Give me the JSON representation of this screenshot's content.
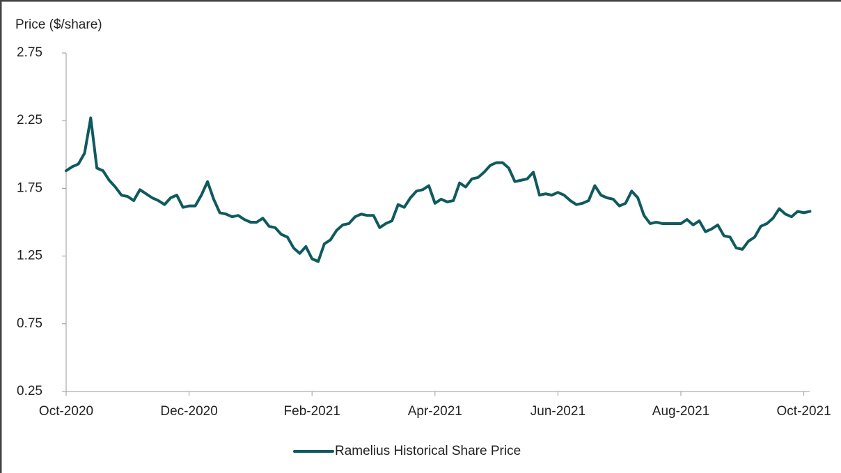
{
  "chart_data": {
    "type": "line",
    "y_label": "Price ($/share)",
    "categories": [
      "Oct-2020",
      null,
      null,
      null,
      null,
      null,
      null,
      null,
      null,
      null,
      null,
      null,
      null,
      null,
      null,
      null,
      null,
      null,
      null,
      null,
      "Dec-2020",
      null,
      null,
      null,
      null,
      null,
      null,
      null,
      null,
      null,
      null,
      null,
      null,
      null,
      null,
      null,
      null,
      null,
      null,
      null,
      "Feb-2021",
      null,
      null,
      null,
      null,
      null,
      null,
      null,
      null,
      null,
      null,
      null,
      null,
      null,
      null,
      null,
      null,
      null,
      null,
      null,
      "Apr-2021",
      null,
      null,
      null,
      null,
      null,
      null,
      null,
      null,
      null,
      null,
      null,
      null,
      null,
      null,
      null,
      null,
      null,
      null,
      null,
      "Jun-2021",
      null,
      null,
      null,
      null,
      null,
      null,
      null,
      null,
      null,
      null,
      null,
      null,
      null,
      null,
      null,
      null,
      null,
      null,
      null,
      "Aug-2021",
      null,
      null,
      null,
      null,
      null,
      null,
      null,
      null,
      null,
      null,
      null,
      null,
      null,
      null,
      null,
      null,
      null,
      null,
      null,
      "Oct-2021",
      null
    ],
    "series": [
      {
        "name": "Ramelius Historical Share Price",
        "color": "#0f5a5e",
        "values": [
          1.88,
          1.91,
          1.93,
          2.01,
          2.27,
          1.9,
          1.88,
          1.81,
          1.76,
          1.7,
          1.69,
          1.66,
          1.74,
          1.71,
          1.68,
          1.66,
          1.63,
          1.68,
          1.7,
          1.61,
          1.62,
          1.62,
          1.7,
          1.8,
          1.67,
          1.57,
          1.56,
          1.54,
          1.55,
          1.52,
          1.5,
          1.5,
          1.53,
          1.47,
          1.46,
          1.41,
          1.39,
          1.31,
          1.27,
          1.32,
          1.23,
          1.21,
          1.34,
          1.37,
          1.44,
          1.48,
          1.49,
          1.54,
          1.56,
          1.55,
          1.55,
          1.46,
          1.49,
          1.51,
          1.63,
          1.61,
          1.68,
          1.73,
          1.74,
          1.77,
          1.64,
          1.67,
          1.65,
          1.66,
          1.79,
          1.76,
          1.82,
          1.83,
          1.87,
          1.92,
          1.94,
          1.94,
          1.9,
          1.8,
          1.81,
          1.82,
          1.87,
          1.7,
          1.71,
          1.7,
          1.72,
          1.7,
          1.66,
          1.63,
          1.64,
          1.66,
          1.77,
          1.7,
          1.68,
          1.67,
          1.62,
          1.64,
          1.73,
          1.68,
          1.55,
          1.49,
          1.5,
          1.49,
          1.49,
          1.49,
          1.49,
          1.52,
          1.48,
          1.51,
          1.43,
          1.45,
          1.48,
          1.4,
          1.39,
          1.31,
          1.3,
          1.36,
          1.39,
          1.47,
          1.49,
          1.53,
          1.6,
          1.56,
          1.54,
          1.58,
          1.57,
          1.58
        ]
      }
    ],
    "ylim": [
      0.25,
      2.75
    ],
    "yticks": [
      {
        "value": 0.25,
        "label": "0.25"
      },
      {
        "value": 0.75,
        "label": "0.75"
      },
      {
        "value": 1.25,
        "label": "1.25"
      },
      {
        "value": 1.75,
        "label": "1.75"
      },
      {
        "value": 2.25,
        "label": "2.25"
      },
      {
        "value": 2.75,
        "label": "2.75"
      }
    ],
    "legend": "bottom"
  }
}
